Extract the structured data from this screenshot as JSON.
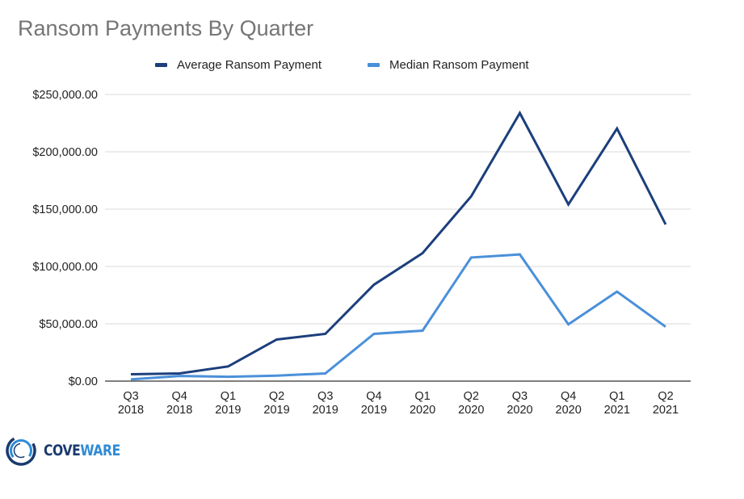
{
  "title": "Ransom Payments By Quarter",
  "legend": [
    {
      "label": "Average Ransom Payment",
      "color": "#1c3f7c"
    },
    {
      "label": "Median Ransom Payment",
      "color": "#4a90d9"
    }
  ],
  "logo": {
    "part1": "COVE",
    "part2": "WARE",
    "icon": "coveware-ring-logo"
  },
  "colors": {
    "average": "#1c3f7c",
    "median": "#4a90d9",
    "grid": "#d9d9d9",
    "axis": "#333333",
    "title": "#757575"
  },
  "chart_data": {
    "type": "line",
    "title": "Ransom Payments By Quarter",
    "xlabel": "",
    "ylabel": "",
    "categories": [
      "Q3 2018",
      "Q4 2018",
      "Q1 2019",
      "Q2 2019",
      "Q3 2019",
      "Q4 2019",
      "Q1 2020",
      "Q2 2020",
      "Q3 2020",
      "Q4 2020",
      "Q1 2021",
      "Q2 2021"
    ],
    "category_lines": [
      [
        "Q3",
        "2018"
      ],
      [
        "Q4",
        "2018"
      ],
      [
        "Q1",
        "2019"
      ],
      [
        "Q2",
        "2019"
      ],
      [
        "Q3",
        "2019"
      ],
      [
        "Q4",
        "2019"
      ],
      [
        "Q1",
        "2020"
      ],
      [
        "Q2",
        "2020"
      ],
      [
        "Q3",
        "2020"
      ],
      [
        "Q4",
        "2020"
      ],
      [
        "Q1",
        "2021"
      ],
      [
        "Q2",
        "2021"
      ]
    ],
    "series": [
      {
        "name": "Average Ransom Payment",
        "color": "#1c3f7c",
        "values": [
          6000,
          6700,
          12800,
          36300,
          41200,
          84100,
          111600,
          161200,
          233800,
          154100,
          220300,
          136600
        ]
      },
      {
        "name": "Median Ransom Payment",
        "color": "#4a90d9",
        "values": [
          1500,
          4500,
          3800,
          4800,
          6700,
          41200,
          44000,
          107800,
          110500,
          49500,
          78000,
          47400
        ]
      }
    ],
    "ylim": [
      0,
      250000
    ],
    "yticks": [
      0,
      50000,
      100000,
      150000,
      200000,
      250000
    ],
    "ytick_labels": [
      "$0.00",
      "$50,000.00",
      "$100,000.00",
      "$150,000.00",
      "$200,000.00",
      "$250,000.00"
    ],
    "grid": true,
    "legend_position": "top"
  }
}
